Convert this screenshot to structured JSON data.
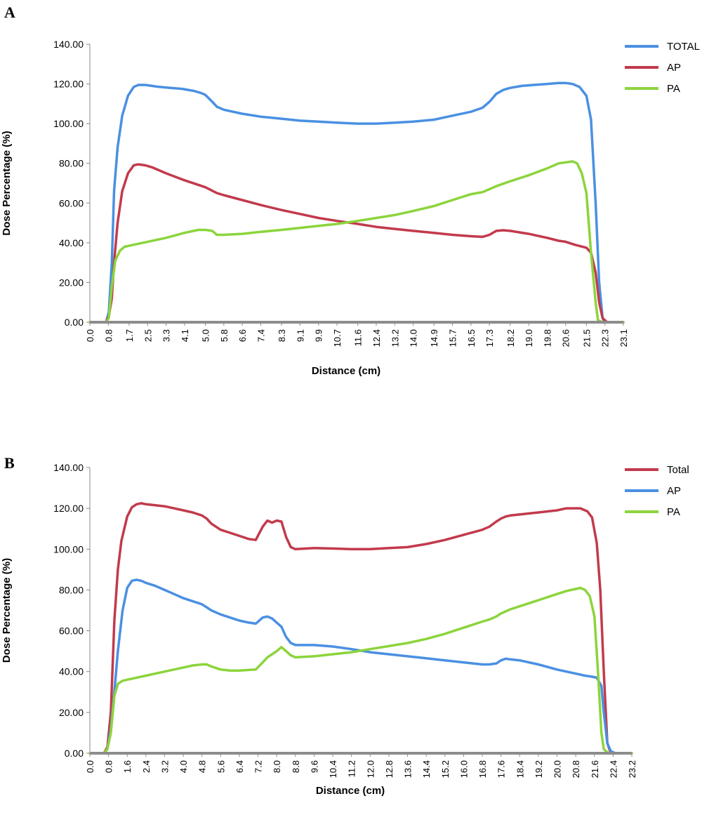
{
  "panels": [
    {
      "label": "A"
    },
    {
      "label": "B"
    }
  ],
  "chart_data": [
    {
      "type": "line",
      "xlabel": "Distance (cm)",
      "ylabel": "Dose Percentage (%)",
      "ylim": [
        0,
        140
      ],
      "yticks": [
        "0.00",
        "20.00",
        "40.00",
        "60.00",
        "80.00",
        "100.00",
        "120.00",
        "140.00"
      ],
      "xticks": [
        "0.0",
        "0.8",
        "1.7",
        "2.5",
        "3.3",
        "4.1",
        "5.0",
        "5.8",
        "6.6",
        "7.4",
        "8.3",
        "9.1",
        "9.9",
        "10.7",
        "11.6",
        "12.4",
        "13.2",
        "14.0",
        "14.9",
        "15.7",
        "16.5",
        "17.3",
        "18.2",
        "19.0",
        "19.8",
        "20.6",
        "21.5",
        "22.3",
        "23.1"
      ],
      "xlim": [
        0,
        23.1
      ],
      "legend_position": "top-right",
      "grid": false,
      "series": [
        {
          "name": "TOTAL",
          "color": "#4A90E2",
          "x": [
            0,
            0.7,
            0.82,
            0.95,
            1.05,
            1.2,
            1.4,
            1.65,
            1.9,
            2.1,
            2.4,
            2.7,
            3.0,
            3.5,
            4.0,
            4.5,
            4.8,
            5.0,
            5.3,
            5.5,
            5.8,
            6.6,
            7.4,
            8.3,
            9.1,
            9.9,
            10.7,
            11.6,
            12.4,
            13.2,
            14.0,
            14.9,
            15.7,
            16.5,
            17.0,
            17.3,
            17.6,
            17.9,
            18.2,
            18.7,
            19.2,
            19.8,
            20.3,
            20.6,
            20.9,
            21.2,
            21.5,
            21.7,
            21.9,
            22.05,
            22.2,
            22.3,
            22.5,
            23.1
          ],
          "y": [
            0,
            0,
            5,
            30,
            66,
            88,
            104,
            114,
            118.5,
            119.5,
            119.5,
            119,
            118.5,
            118,
            117.5,
            116.5,
            115.5,
            114.5,
            111,
            108.5,
            107,
            105,
            103.5,
            102.5,
            101.5,
            101,
            100.5,
            100,
            100,
            100.5,
            101,
            102,
            104,
            106,
            108,
            111,
            115,
            117,
            118,
            119,
            119.5,
            120,
            120.5,
            120.5,
            120,
            118.5,
            114,
            102,
            60,
            20,
            2,
            0,
            0,
            0
          ]
        },
        {
          "name": "AP",
          "color": "#C23A4C",
          "x": [
            0,
            0.7,
            0.82,
            0.95,
            1.05,
            1.2,
            1.4,
            1.65,
            1.9,
            2.1,
            2.4,
            2.7,
            3.3,
            4.1,
            5.0,
            5.5,
            5.8,
            6.6,
            7.4,
            8.3,
            9.1,
            9.9,
            10.7,
            11.6,
            12.4,
            13.2,
            14.0,
            14.9,
            15.7,
            16.5,
            17.0,
            17.3,
            17.6,
            17.9,
            18.2,
            19.0,
            19.8,
            20.3,
            20.6,
            21.0,
            21.5,
            21.7,
            21.9,
            22.05,
            22.2,
            22.4,
            23.1
          ],
          "y": [
            0,
            0,
            3,
            12,
            30,
            50,
            66,
            75,
            79,
            79.5,
            79,
            78,
            75,
            71.5,
            68,
            65,
            64,
            61.5,
            59,
            56.5,
            54.5,
            52.5,
            51,
            49.5,
            48,
            47,
            46,
            45,
            44,
            43.3,
            43,
            44,
            46,
            46.3,
            46,
            44.5,
            42.5,
            41,
            40.5,
            39,
            37.5,
            35,
            25,
            10,
            2,
            0,
            0
          ]
        },
        {
          "name": "PA",
          "color": "#8CD43C",
          "x": [
            0,
            0.7,
            0.82,
            0.95,
            1.1,
            1.3,
            1.5,
            1.7,
            2.5,
            3.3,
            4.1,
            4.7,
            5.0,
            5.3,
            5.5,
            5.8,
            6.6,
            7.4,
            8.3,
            9.1,
            9.9,
            10.7,
            11.6,
            12.4,
            13.2,
            14.0,
            14.9,
            15.7,
            16.5,
            17.0,
            17.3,
            17.6,
            18.2,
            19.0,
            19.8,
            20.3,
            20.6,
            20.9,
            21.1,
            21.3,
            21.5,
            21.7,
            21.9,
            22.0,
            22.2,
            23.1
          ],
          "y": [
            0,
            0,
            2,
            18,
            31,
            36,
            38,
            38.5,
            40.5,
            42.5,
            45,
            46.5,
            46.5,
            46,
            44,
            44,
            44.5,
            45.5,
            46.5,
            47.5,
            48.5,
            49.5,
            51,
            52.5,
            54,
            56,
            58.5,
            61.5,
            64.5,
            65.5,
            67,
            68.5,
            71,
            74,
            77.5,
            80,
            80.5,
            81,
            80,
            75,
            65,
            35,
            10,
            1,
            0,
            0
          ]
        }
      ]
    },
    {
      "type": "line",
      "xlabel": "Distance (cm)",
      "ylabel": "Dose Percentage (%)",
      "ylim": [
        0,
        140
      ],
      "yticks": [
        "0.00",
        "20.00",
        "40.00",
        "60.00",
        "80.00",
        "100.00",
        "120.00",
        "140.00"
      ],
      "xticks": [
        "0.0",
        "0.8",
        "1.6",
        "2.4",
        "3.2",
        "4.0",
        "4.8",
        "5.6",
        "6.4",
        "7.2",
        "8.0",
        "8.8",
        "9.6",
        "10.4",
        "11.2",
        "12.0",
        "12.8",
        "13.6",
        "14.4",
        "15.2",
        "16.0",
        "16.8",
        "17.6",
        "18.4",
        "19.2",
        "20.0",
        "20.8",
        "21.6",
        "22.4",
        "23.2"
      ],
      "xlim": [
        0,
        23.2
      ],
      "legend_position": "top-right",
      "grid": false,
      "series": [
        {
          "name": "Total",
          "color": "#C23A4C",
          "x": [
            0,
            0.6,
            0.75,
            0.9,
            1.05,
            1.2,
            1.35,
            1.6,
            1.8,
            2.0,
            2.2,
            2.4,
            2.8,
            3.2,
            3.6,
            4.0,
            4.4,
            4.8,
            5.0,
            5.2,
            5.6,
            6.0,
            6.4,
            6.8,
            7.1,
            7.4,
            7.6,
            7.8,
            8.0,
            8.2,
            8.4,
            8.6,
            8.8,
            9.6,
            10.4,
            11.2,
            12.0,
            12.8,
            13.6,
            14.4,
            15.2,
            16.0,
            16.8,
            17.1,
            17.4,
            17.6,
            17.8,
            18.0,
            18.4,
            19.2,
            20.0,
            20.4,
            20.7,
            21.0,
            21.3,
            21.5,
            21.7,
            21.85,
            22.0,
            22.15,
            22.3,
            22.5,
            23.2
          ],
          "y": [
            0,
            0,
            3,
            20,
            65,
            90,
            104,
            116,
            120.5,
            122,
            122.5,
            122,
            121.5,
            121,
            120,
            119,
            118,
            116.5,
            115,
            112.5,
            109.5,
            108,
            106.5,
            105,
            104.5,
            111,
            114,
            113,
            114,
            113.5,
            106,
            101,
            100,
            100.5,
            100.3,
            100,
            100,
            100.5,
            101,
            102.5,
            104.5,
            107,
            109.5,
            111,
            113.5,
            115,
            116,
            116.5,
            117,
            118,
            119,
            120,
            120,
            120,
            118.5,
            115.5,
            103,
            80,
            40,
            5,
            0,
            0,
            0
          ]
        },
        {
          "name": "AP",
          "color": "#4A90E2",
          "x": [
            0,
            0.6,
            0.75,
            0.9,
            1.05,
            1.2,
            1.4,
            1.6,
            1.8,
            2.0,
            2.2,
            2.4,
            2.8,
            3.2,
            3.6,
            4.0,
            4.4,
            4.8,
            5.0,
            5.2,
            5.6,
            6.0,
            6.4,
            6.8,
            7.1,
            7.4,
            7.6,
            7.8,
            8.0,
            8.2,
            8.4,
            8.6,
            8.8,
            9.6,
            10.4,
            11.2,
            12.0,
            12.8,
            13.6,
            14.4,
            15.2,
            16.0,
            16.8,
            17.1,
            17.4,
            17.6,
            17.8,
            18.0,
            18.4,
            19.2,
            20.0,
            20.4,
            20.8,
            21.2,
            21.5,
            21.7,
            21.9,
            22.0,
            22.15,
            22.3,
            22.5,
            23.2
          ],
          "y": [
            0,
            0,
            2,
            12,
            30,
            50,
            70,
            81,
            84.5,
            85,
            84.5,
            83.5,
            82,
            80,
            78,
            76,
            74.5,
            73,
            71.5,
            70,
            68,
            66.5,
            65,
            64,
            63.5,
            66.5,
            67,
            66,
            64,
            62,
            57,
            54,
            53,
            53,
            52.3,
            51,
            49.5,
            48.5,
            47.5,
            46.5,
            45.5,
            44.5,
            43.5,
            43.5,
            44,
            45.5,
            46.3,
            46,
            45.5,
            43.5,
            41,
            40,
            39,
            38,
            37.5,
            37,
            33,
            20,
            5,
            1,
            0,
            0
          ]
        },
        {
          "name": "PA",
          "color": "#8CD43C",
          "x": [
            0,
            0.6,
            0.75,
            0.9,
            1.05,
            1.2,
            1.4,
            1.6,
            2.4,
            3.2,
            4.0,
            4.4,
            4.8,
            5.0,
            5.2,
            5.6,
            6.0,
            6.4,
            6.8,
            7.1,
            7.4,
            7.6,
            7.8,
            8.0,
            8.2,
            8.4,
            8.6,
            8.8,
            9.6,
            10.4,
            11.2,
            12.0,
            12.8,
            13.6,
            14.4,
            15.2,
            16.0,
            16.8,
            17.1,
            17.4,
            17.6,
            17.8,
            18.0,
            18.4,
            19.2,
            20.0,
            20.4,
            20.8,
            21.0,
            21.2,
            21.4,
            21.6,
            21.75,
            21.9,
            22.0,
            22.2,
            23.2
          ],
          "y": [
            0,
            0,
            2,
            10,
            28,
            34,
            35.5,
            36,
            38,
            40,
            42,
            43,
            43.5,
            43.5,
            42.5,
            41,
            40.5,
            40.5,
            40.8,
            41,
            44.5,
            47,
            48.5,
            50,
            52,
            50,
            48,
            47,
            47.5,
            48.5,
            49.5,
            51,
            52.5,
            54,
            56,
            58.5,
            61.5,
            64.5,
            65.5,
            67,
            68.5,
            69.5,
            70.5,
            72,
            75,
            78,
            79.5,
            80.5,
            81,
            80,
            77,
            67,
            40,
            10,
            2,
            0,
            0
          ]
        }
      ]
    }
  ]
}
